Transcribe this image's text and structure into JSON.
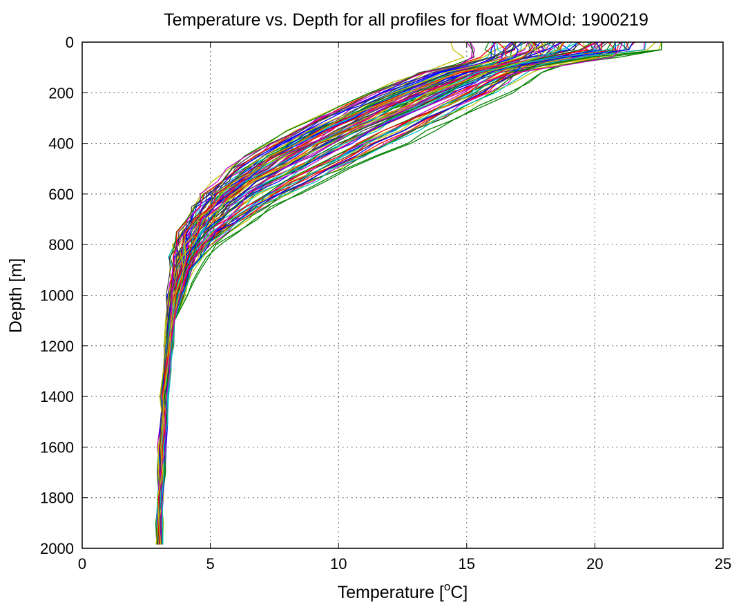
{
  "chart_data": {
    "type": "line",
    "title": "Temperature vs. Depth for all profiles for float WMOId: 1900219",
    "xlabel": "Temperature [°C]",
    "xlabel_parts": {
      "pre": "Temperature [",
      "sup": "o",
      "post": "C]"
    },
    "ylabel": "Depth [m]",
    "xlim": [
      0,
      25
    ],
    "ylim": [
      0,
      2000
    ],
    "y_reversed": true,
    "grid": true,
    "x_ticks": [
      0,
      5,
      10,
      15,
      20,
      25
    ],
    "y_ticks": [
      0,
      200,
      400,
      600,
      800,
      1000,
      1200,
      1400,
      1600,
      1800,
      2000
    ],
    "colors": [
      "#0000ff",
      "#008000",
      "#ff0000",
      "#00bfbf",
      "#bf00bf",
      "#bfbf00",
      "#404040"
    ],
    "depth_levels": [
      0,
      30,
      60,
      90,
      120,
      160,
      200,
      250,
      300,
      350,
      400,
      450,
      500,
      550,
      600,
      650,
      700,
      750,
      800,
      850,
      900,
      950,
      1000,
      1100,
      1200,
      1300,
      1400,
      1500,
      1600,
      1700,
      1800,
      1900,
      1985
    ],
    "representative_profiles": [
      {
        "temperature": [
          16.5,
          16.4,
          16.2,
          15.6,
          14.2,
          13.2,
          12.2,
          11.0,
          9.9,
          8.9,
          8.0,
          7.1,
          6.4,
          5.8,
          5.3,
          4.9,
          4.5,
          4.2,
          4.0,
          3.9,
          3.8,
          3.7,
          3.6,
          3.5,
          3.4,
          3.3,
          3.2,
          3.2,
          3.1,
          3.1,
          3.0,
          3.0,
          3.0
        ]
      },
      {
        "temperature": [
          22.3,
          22.2,
          19.5,
          17.8,
          17.2,
          16.6,
          16.0,
          15.0,
          14.0,
          13.0,
          12.0,
          11.0,
          10.0,
          9.0,
          8.0,
          7.1,
          6.3,
          5.6,
          5.0,
          4.6,
          4.3,
          4.1,
          3.9,
          3.7,
          3.5,
          3.4,
          3.3,
          3.3,
          3.2,
          3.2,
          3.1,
          3.1,
          3.1
        ]
      },
      {
        "temperature": [
          18.0,
          17.9,
          17.5,
          16.4,
          15.0,
          14.0,
          13.0,
          12.0,
          11.0,
          9.9,
          8.8,
          7.9,
          7.0,
          6.2,
          5.5,
          5.0,
          4.6,
          4.3,
          4.1,
          3.9,
          3.8,
          3.7,
          3.6,
          3.5,
          3.4,
          3.3,
          3.2,
          3.2,
          3.1,
          3.1,
          3.1,
          3.0,
          3.0
        ]
      },
      {
        "temperature": [
          20.0,
          19.9,
          19.5,
          17.8,
          15.8,
          14.8,
          13.8,
          12.7,
          11.6,
          10.6,
          9.6,
          8.7,
          7.8,
          6.9,
          6.1,
          5.5,
          5.0,
          4.6,
          4.3,
          4.1,
          3.9,
          3.8,
          3.7,
          3.6,
          3.5,
          3.4,
          3.3,
          3.2,
          3.2,
          3.1,
          3.1,
          3.1,
          3.0
        ]
      },
      {
        "temperature": [
          15.9,
          15.8,
          15.6,
          14.8,
          13.6,
          12.7,
          11.7,
          10.6,
          9.5,
          8.5,
          7.6,
          6.8,
          6.1,
          5.5,
          5.0,
          4.6,
          4.3,
          4.0,
          3.8,
          3.7,
          3.6,
          3.5,
          3.4,
          3.3,
          3.2,
          3.2,
          3.1,
          3.1,
          3.0,
          3.0,
          3.0,
          2.9,
          2.9
        ]
      }
    ]
  }
}
